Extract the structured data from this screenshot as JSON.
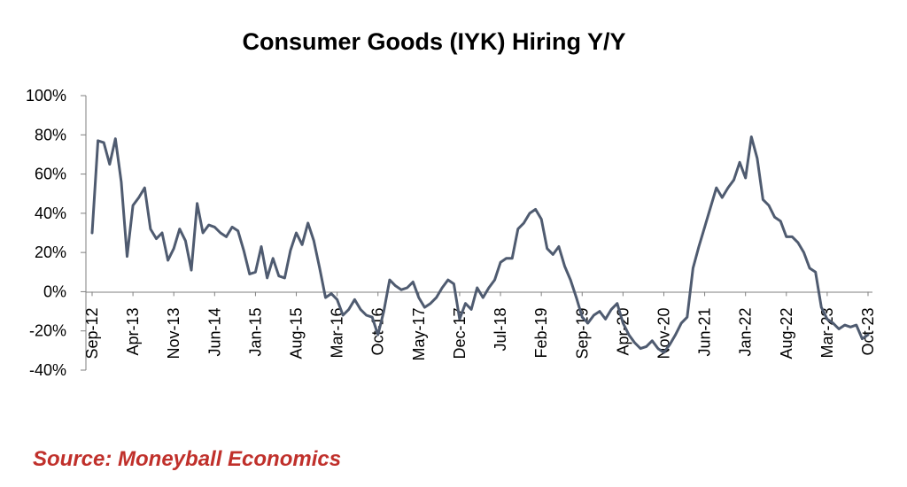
{
  "source_text": "Source: Moneyball Economics",
  "colors": {
    "line": "#4f5b70",
    "source": "#c0302b",
    "axis": "#7f7f7f"
  },
  "chart_data": {
    "type": "line",
    "title": "Consumer Goods (IYK) Hiring Y/Y",
    "xlabel": "",
    "ylabel": "",
    "ylim": [
      -40,
      100
    ],
    "y_ticks": [
      100,
      80,
      60,
      40,
      20,
      0,
      -20,
      -40
    ],
    "y_tick_labels": [
      "100%",
      "80%",
      "60%",
      "40%",
      "20%",
      "0%",
      "-20%",
      "-40%"
    ],
    "x_tick_labels": [
      "Sep-12",
      "Apr-13",
      "Nov-13",
      "Jun-14",
      "Jan-15",
      "Aug-15",
      "Mar-16",
      "Oct-16",
      "May-17",
      "Dec-17",
      "Jul-18",
      "Feb-19",
      "Sep-19",
      "Apr-20",
      "Nov-20",
      "Jun-21",
      "Jan-22",
      "Aug-22",
      "Mar-23",
      "Oct-23"
    ],
    "x_tick_label_step_months": 7,
    "grid": false,
    "legend": "none",
    "series": [
      {
        "values": [
          30,
          77,
          76,
          65,
          78,
          56,
          18,
          44,
          48,
          53,
          32,
          27,
          30,
          16,
          22,
          32,
          26,
          11,
          45,
          30,
          34,
          33,
          30,
          28,
          33,
          31,
          21,
          9,
          10,
          23,
          7,
          17,
          8,
          7,
          21,
          30,
          24,
          35,
          26,
          12,
          -3,
          -1,
          -4,
          -12,
          -9,
          -4,
          -9,
          -12,
          -13,
          -22,
          -10,
          6,
          3,
          1,
          2,
          5,
          -3,
          -8,
          -6,
          -3,
          2,
          6,
          4,
          -14,
          -6,
          -9,
          2,
          -3,
          2,
          6,
          15,
          17,
          17,
          32,
          35,
          40,
          42,
          37,
          22,
          19,
          23,
          13,
          6,
          -3,
          -13,
          -16,
          -12,
          -10,
          -14,
          -9,
          -6,
          -16,
          -22,
          -26,
          -29,
          -28,
          -25,
          -29,
          -31,
          -27,
          -22,
          -16,
          -13,
          12,
          23,
          33,
          43,
          53,
          48,
          53,
          57,
          66,
          58,
          79,
          68,
          47,
          44,
          38,
          36,
          28,
          28,
          25,
          20,
          12,
          10,
          -8,
          -14,
          -16,
          -19,
          -17,
          -18,
          -17,
          -24,
          -22
        ]
      }
    ]
  }
}
